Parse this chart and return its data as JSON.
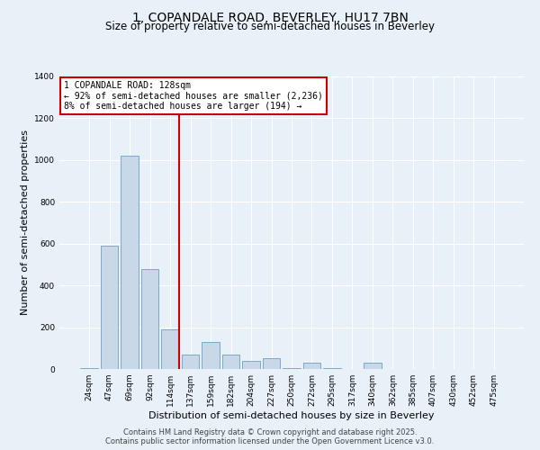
{
  "title_line1": "1, COPANDALE ROAD, BEVERLEY, HU17 7BN",
  "title_line2": "Size of property relative to semi-detached houses in Beverley",
  "xlabel": "Distribution of semi-detached houses by size in Beverley",
  "ylabel": "Number of semi-detached properties",
  "categories": [
    "24sqm",
    "47sqm",
    "69sqm",
    "92sqm",
    "114sqm",
    "137sqm",
    "159sqm",
    "182sqm",
    "204sqm",
    "227sqm",
    "250sqm",
    "272sqm",
    "295sqm",
    "317sqm",
    "340sqm",
    "362sqm",
    "385sqm",
    "407sqm",
    "430sqm",
    "452sqm",
    "475sqm"
  ],
  "values": [
    5,
    590,
    1020,
    480,
    190,
    70,
    130,
    70,
    40,
    50,
    5,
    30,
    5,
    0,
    30,
    0,
    0,
    0,
    0,
    0,
    0
  ],
  "bar_color": "#c8d8e8",
  "bar_edge_color": "#7aaac8",
  "vline_color": "#cc0000",
  "annotation_title": "1 COPANDALE ROAD: 128sqm",
  "annotation_line1": "← 92% of semi-detached houses are smaller (2,236)",
  "annotation_line2": "8% of semi-detached houses are larger (194) →",
  "annotation_box_color": "#ffffff",
  "annotation_border_color": "#cc0000",
  "ylim": [
    0,
    1400
  ],
  "yticks": [
    0,
    200,
    400,
    600,
    800,
    1000,
    1200,
    1400
  ],
  "background_color": "#e8f0f8",
  "grid_color": "#ffffff",
  "footer_line1": "Contains HM Land Registry data © Crown copyright and database right 2025.",
  "footer_line2": "Contains public sector information licensed under the Open Government Licence v3.0.",
  "title_fontsize": 10,
  "subtitle_fontsize": 8.5,
  "axis_label_fontsize": 8,
  "tick_fontsize": 6.5,
  "annotation_fontsize": 7,
  "footer_fontsize": 6
}
